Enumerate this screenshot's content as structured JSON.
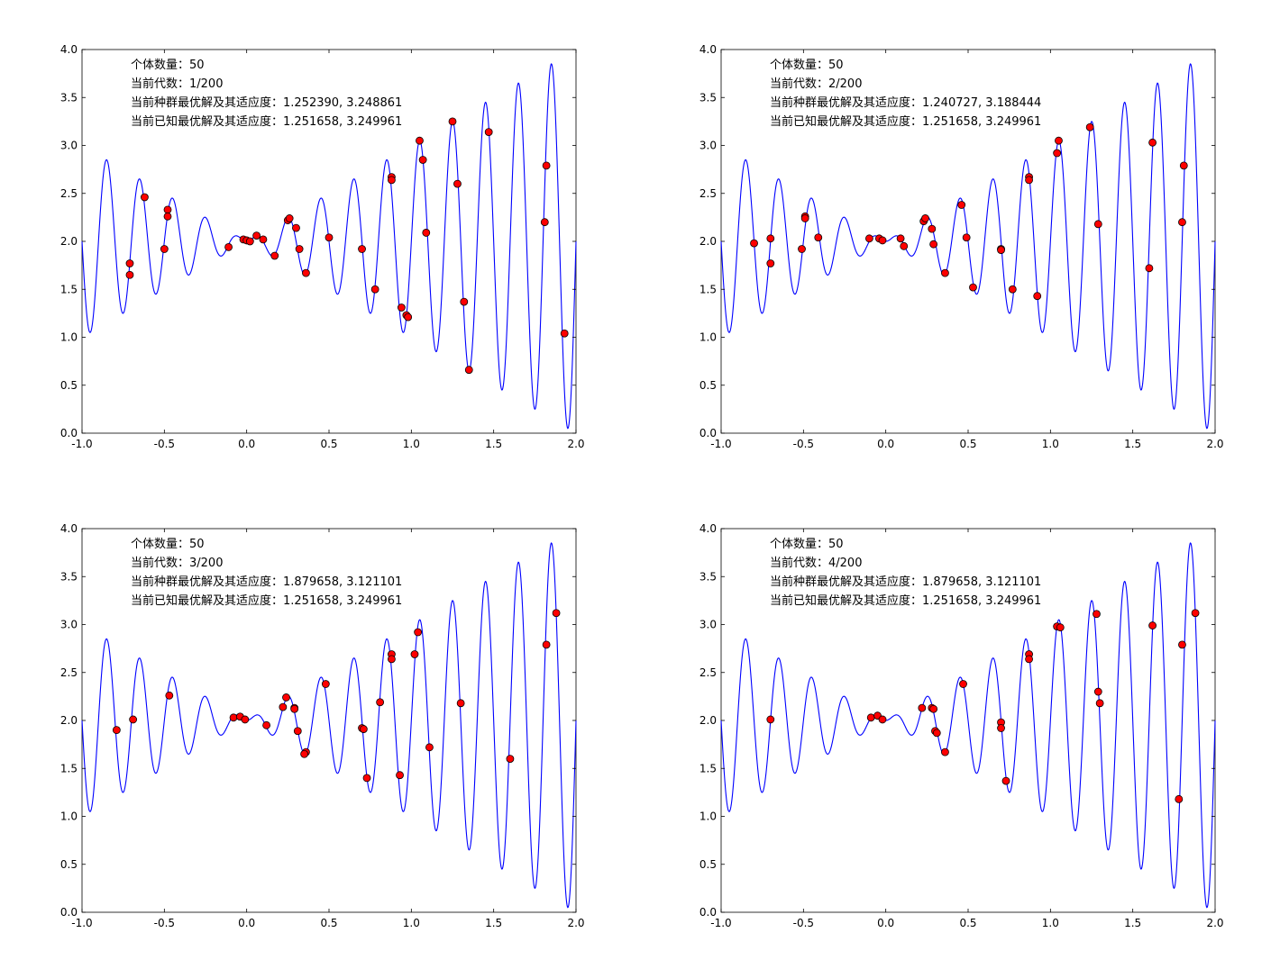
{
  "colors": {
    "curve": "#0000ff",
    "marker_fill": "#ff0000",
    "marker_edge": "#000000",
    "axes": "#000000",
    "background": "#ffffff"
  },
  "chart_data": [
    {
      "type": "scatter",
      "function": "x*sin(10*pi*x)+2",
      "xlim": [
        -1.0,
        2.0
      ],
      "ylim": [
        0.0,
        4.0
      ],
      "xticks": [
        "-1.0",
        "-0.5",
        "0.0",
        "0.5",
        "1.0",
        "1.5",
        "2.0"
      ],
      "yticks": [
        "0.0",
        "0.5",
        "1.0",
        "1.5",
        "2.0",
        "2.5",
        "3.0",
        "3.5",
        "4.0"
      ],
      "grid": false,
      "annotations": [
        "个体数量：50",
        "当前代数：1/200",
        "当前种群最优解及其适应度：1.252390,  3.248861",
        "当前已知最优解及其适应度：1.251658,  3.249961"
      ],
      "points": [
        [
          -0.71,
          1.77
        ],
        [
          -0.71,
          1.65
        ],
        [
          -0.62,
          2.46
        ],
        [
          -0.5,
          1.92
        ],
        [
          -0.48,
          2.33
        ],
        [
          -0.48,
          2.26
        ],
        [
          -0.11,
          1.94
        ],
        [
          -0.02,
          2.02
        ],
        [
          0.0,
          2.01
        ],
        [
          0.02,
          2.0
        ],
        [
          0.06,
          2.06
        ],
        [
          0.1,
          2.02
        ],
        [
          0.17,
          1.85
        ],
        [
          0.25,
          2.22
        ],
        [
          0.26,
          2.24
        ],
        [
          0.3,
          2.14
        ],
        [
          0.32,
          1.92
        ],
        [
          0.36,
          1.67
        ],
        [
          0.5,
          2.04
        ],
        [
          0.7,
          1.92
        ],
        [
          0.78,
          1.5
        ],
        [
          0.88,
          2.67
        ],
        [
          0.88,
          2.64
        ],
        [
          0.94,
          1.31
        ],
        [
          0.97,
          1.23
        ],
        [
          0.98,
          1.21
        ],
        [
          1.05,
          3.05
        ],
        [
          1.07,
          2.85
        ],
        [
          1.09,
          2.09
        ],
        [
          1.25,
          3.25
        ],
        [
          1.28,
          2.6
        ],
        [
          1.32,
          1.37
        ],
        [
          1.35,
          0.66
        ],
        [
          1.47,
          3.14
        ],
        [
          1.81,
          2.2
        ],
        [
          1.82,
          2.79
        ],
        [
          1.93,
          1.04
        ]
      ]
    },
    {
      "type": "scatter",
      "function": "x*sin(10*pi*x)+2",
      "xlim": [
        -1.0,
        2.0
      ],
      "ylim": [
        0.0,
        4.0
      ],
      "xticks": [
        "-1.0",
        "-0.5",
        "0.0",
        "0.5",
        "1.0",
        "1.5",
        "2.0"
      ],
      "yticks": [
        "0.0",
        "0.5",
        "1.0",
        "1.5",
        "2.0",
        "2.5",
        "3.0",
        "3.5",
        "4.0"
      ],
      "grid": false,
      "annotations": [
        "个体数量：50",
        "当前代数：2/200",
        "当前种群最优解及其适应度：1.240727,  3.188444",
        "当前已知最优解及其适应度：1.251658,  3.249961"
      ],
      "points": [
        [
          -0.8,
          1.98
        ],
        [
          -0.7,
          2.03
        ],
        [
          -0.7,
          1.77
        ],
        [
          -0.51,
          1.92
        ],
        [
          -0.49,
          2.26
        ],
        [
          -0.49,
          2.24
        ],
        [
          -0.41,
          2.04
        ],
        [
          -0.1,
          2.03
        ],
        [
          -0.04,
          2.03
        ],
        [
          -0.02,
          2.01
        ],
        [
          0.09,
          2.03
        ],
        [
          0.11,
          1.95
        ],
        [
          0.23,
          2.21
        ],
        [
          0.24,
          2.24
        ],
        [
          0.28,
          2.13
        ],
        [
          0.29,
          1.97
        ],
        [
          0.36,
          1.67
        ],
        [
          0.46,
          2.38
        ],
        [
          0.49,
          2.04
        ],
        [
          0.53,
          1.52
        ],
        [
          0.7,
          1.92
        ],
        [
          0.7,
          1.91
        ],
        [
          0.77,
          1.5
        ],
        [
          0.87,
          2.67
        ],
        [
          0.87,
          2.64
        ],
        [
          0.92,
          1.43
        ],
        [
          1.04,
          2.92
        ],
        [
          1.05,
          3.05
        ],
        [
          1.24,
          3.19
        ],
        [
          1.29,
          2.18
        ],
        [
          1.6,
          1.72
        ],
        [
          1.62,
          3.03
        ],
        [
          1.8,
          2.2
        ],
        [
          1.81,
          2.79
        ]
      ]
    },
    {
      "type": "scatter",
      "function": "x*sin(10*pi*x)+2",
      "xlim": [
        -1.0,
        2.0
      ],
      "ylim": [
        0.0,
        4.0
      ],
      "xticks": [
        "-1.0",
        "-0.5",
        "0.0",
        "0.5",
        "1.0",
        "1.5",
        "2.0"
      ],
      "yticks": [
        "0.0",
        "0.5",
        "1.0",
        "1.5",
        "2.0",
        "2.5",
        "3.0",
        "3.5",
        "4.0"
      ],
      "grid": false,
      "annotations": [
        "个体数量：50",
        "当前代数：3/200",
        "当前种群最优解及其适应度：1.879658,  3.121101",
        "当前已知最优解及其适应度：1.251658,  3.249961"
      ],
      "points": [
        [
          -0.79,
          1.9
        ],
        [
          -0.69,
          2.01
        ],
        [
          -0.47,
          2.26
        ],
        [
          -0.08,
          2.03
        ],
        [
          -0.04,
          2.04
        ],
        [
          -0.01,
          2.01
        ],
        [
          0.12,
          1.95
        ],
        [
          0.24,
          2.24
        ],
        [
          0.22,
          2.14
        ],
        [
          0.29,
          2.13
        ],
        [
          0.29,
          2.12
        ],
        [
          0.31,
          1.89
        ],
        [
          0.36,
          1.67
        ],
        [
          0.35,
          1.65
        ],
        [
          0.48,
          2.38
        ],
        [
          0.7,
          1.92
        ],
        [
          0.71,
          1.91
        ],
        [
          0.73,
          1.4
        ],
        [
          0.81,
          2.19
        ],
        [
          0.88,
          2.69
        ],
        [
          0.88,
          2.64
        ],
        [
          0.93,
          1.43
        ],
        [
          1.02,
          2.69
        ],
        [
          1.04,
          2.92
        ],
        [
          1.11,
          1.72
        ],
        [
          1.3,
          2.18
        ],
        [
          1.6,
          1.6
        ],
        [
          1.82,
          2.79
        ],
        [
          1.88,
          3.12
        ]
      ]
    },
    {
      "type": "scatter",
      "function": "x*sin(10*pi*x)+2",
      "xlim": [
        -1.0,
        2.0
      ],
      "ylim": [
        0.0,
        4.0
      ],
      "xticks": [
        "-1.0",
        "-0.5",
        "0.0",
        "0.5",
        "1.0",
        "1.5",
        "2.0"
      ],
      "yticks": [
        "0.0",
        "0.5",
        "1.0",
        "1.5",
        "2.0",
        "2.5",
        "3.0",
        "3.5",
        "4.0"
      ],
      "grid": false,
      "annotations": [
        "个体数量：50",
        "当前代数：4/200",
        "当前种群最优解及其适应度：1.879658,  3.121101",
        "当前已知最优解及其适应度：1.251658,  3.249961"
      ],
      "points": [
        [
          -0.7,
          2.01
        ],
        [
          -0.09,
          2.03
        ],
        [
          -0.05,
          2.05
        ],
        [
          -0.02,
          2.01
        ],
        [
          0.22,
          2.13
        ],
        [
          0.28,
          2.13
        ],
        [
          0.29,
          2.12
        ],
        [
          0.3,
          1.89
        ],
        [
          0.31,
          1.87
        ],
        [
          0.36,
          1.67
        ],
        [
          0.47,
          2.38
        ],
        [
          0.7,
          1.98
        ],
        [
          0.7,
          1.92
        ],
        [
          0.73,
          1.37
        ],
        [
          0.87,
          2.69
        ],
        [
          0.87,
          2.64
        ],
        [
          1.04,
          2.98
        ],
        [
          1.06,
          2.97
        ],
        [
          1.28,
          3.11
        ],
        [
          1.29,
          2.3
        ],
        [
          1.3,
          2.18
        ],
        [
          1.62,
          2.99
        ],
        [
          1.78,
          1.18
        ],
        [
          1.8,
          2.79
        ],
        [
          1.88,
          3.12
        ]
      ]
    }
  ]
}
